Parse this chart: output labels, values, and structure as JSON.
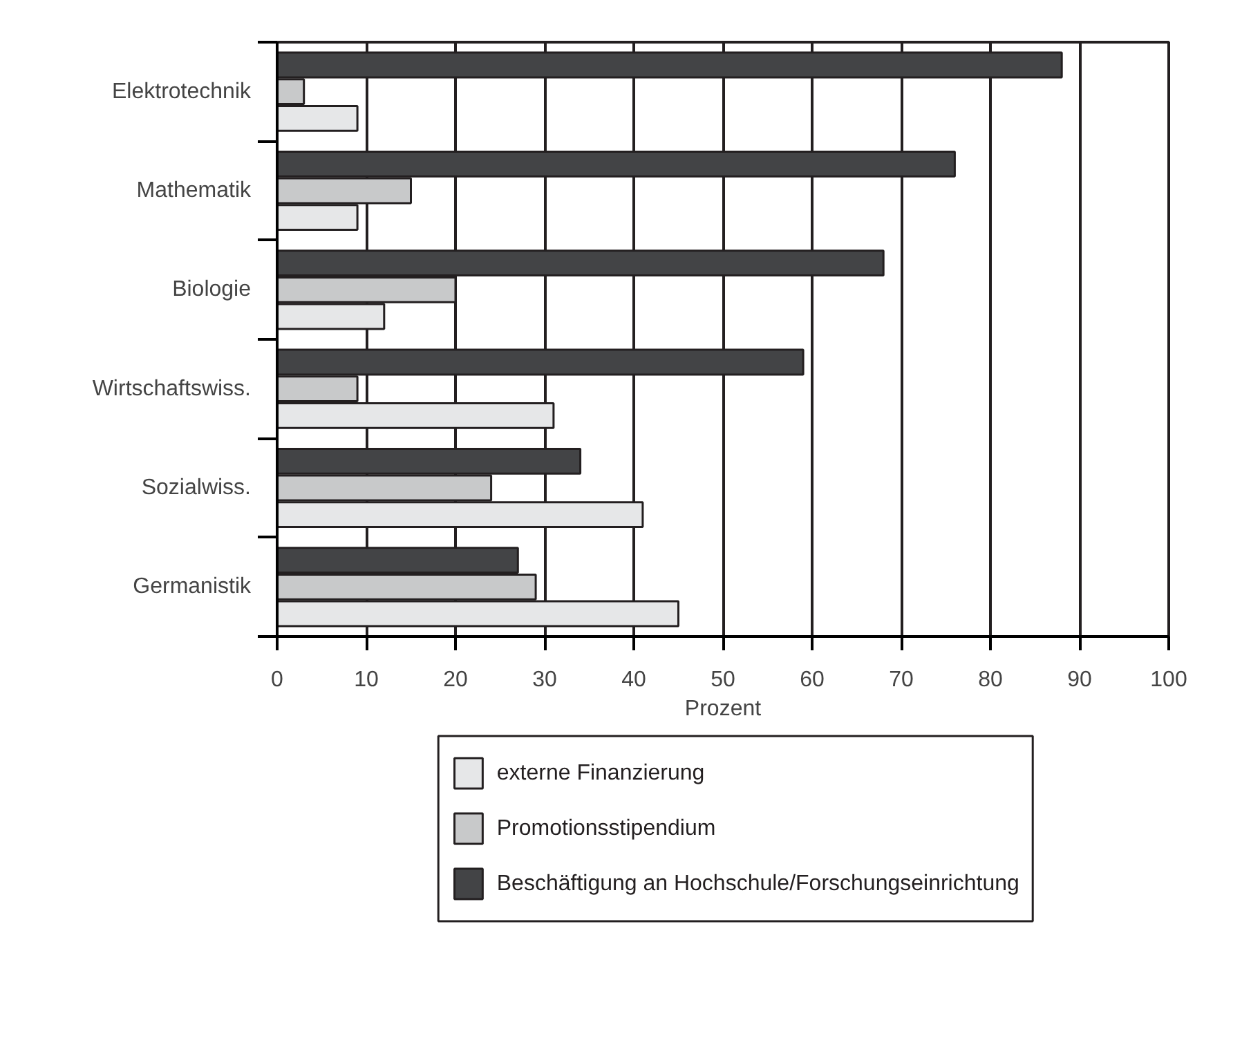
{
  "chart_data": {
    "type": "bar",
    "orientation": "horizontal",
    "xlabel": "Prozent",
    "categories": [
      "Elektrotechnik",
      "Mathematik",
      "Biologie",
      "Wirtschaftswiss.",
      "Sozialwiss.",
      "Germanistik"
    ],
    "series": [
      {
        "name": "externe Finanzierung",
        "color": "#e6e7e8",
        "values": [
          9,
          9,
          12,
          31,
          41,
          45
        ]
      },
      {
        "name": "Promotionsstipendium",
        "color": "#c8c9ca",
        "values": [
          3,
          15,
          20,
          9,
          24,
          29
        ]
      },
      {
        "name": "Beschäftigung an Hochschule/Forschungseinrichtung",
        "color": "#434446",
        "values": [
          88,
          76,
          68,
          59,
          34,
          27
        ]
      }
    ],
    "xlim": [
      0,
      100
    ],
    "xticks": [
      0,
      10,
      20,
      30,
      40,
      50,
      60,
      70,
      80,
      90,
      100
    ],
    "grid": "x",
    "legend": "bottom"
  }
}
